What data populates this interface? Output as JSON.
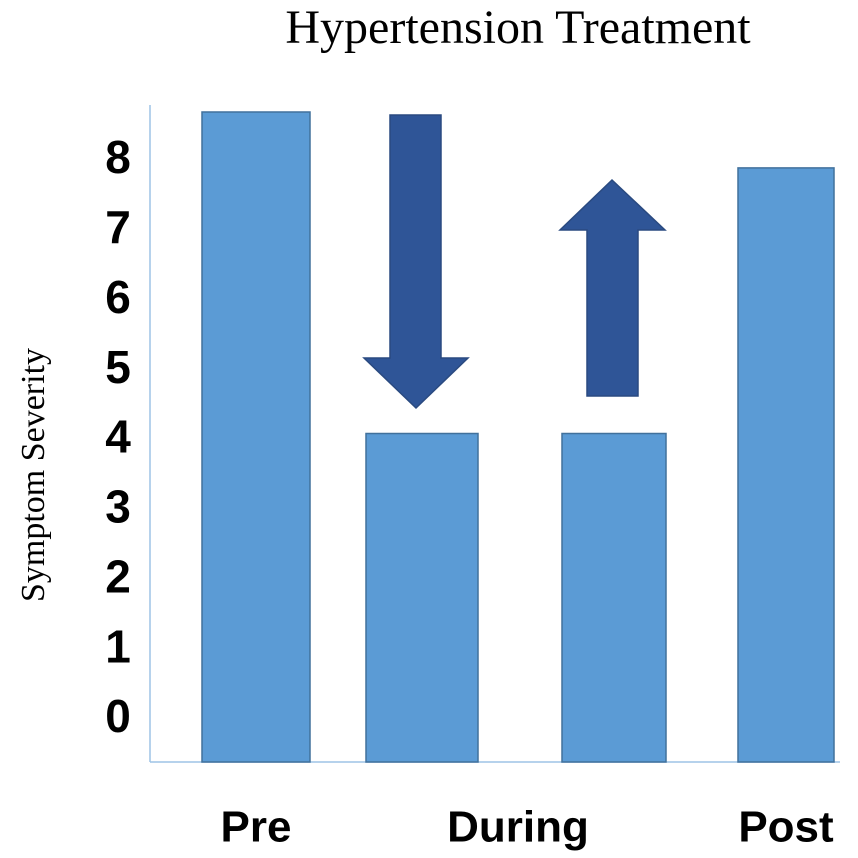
{
  "chart_data": {
    "type": "bar",
    "title": "Hypertension Treatment",
    "y_label": "Symptom Severity",
    "categories": [
      "Pre",
      "During",
      null,
      "Post"
    ],
    "values": [
      8.7,
      4.1,
      4.1,
      7.9
    ],
    "color": "#5b9bd5",
    "ylim": [
      -0.6,
      8.8
    ],
    "yticks": [
      0,
      1,
      2,
      3,
      4,
      5,
      6,
      7,
      8
    ],
    "grid": false
  }
}
